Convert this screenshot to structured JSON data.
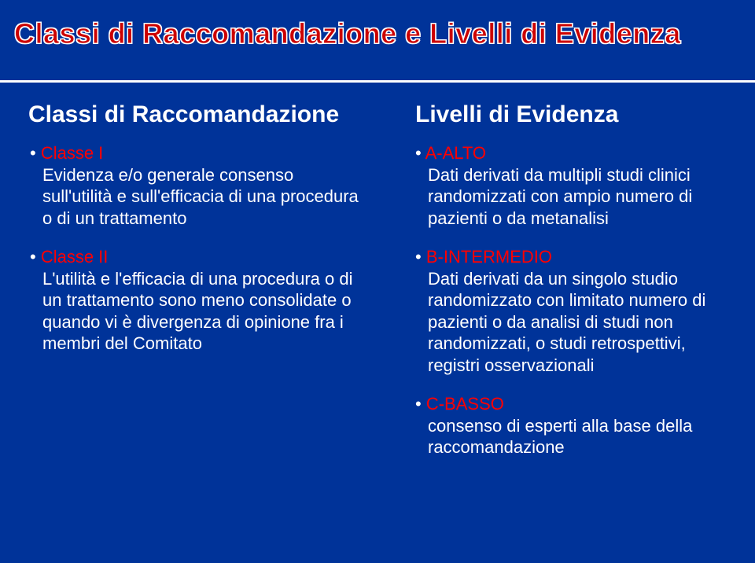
{
  "page": {
    "title": "Classi di Raccomandazione e Livelli di Evidenza"
  },
  "left": {
    "heading": "Classi di Raccomandazione",
    "items": [
      {
        "label": "Classe I",
        "desc": "Evidenza e/o generale consenso sull'utilità e sull'efficacia di una procedura o di un trattamento"
      },
      {
        "label": "Classe II",
        "desc": "L'utilità e l'efficacia di una procedura o di un trattamento sono meno consolidate o quando vi è divergenza di opinione fra i membri del Comitato"
      }
    ]
  },
  "right": {
    "heading": "Livelli di Evidenza",
    "items": [
      {
        "label": "A-ALTO",
        "desc": "Dati derivati da multipli studi clinici randomizzati con ampio numero di pazienti o da metanalisi"
      },
      {
        "label": "B-INTERMEDIO",
        "desc": "Dati derivati da un singolo studio randomizzato con limitato numero di pazienti o da analisi di studi non randomizzati, o studi retrospettivi, registri osservazionali"
      },
      {
        "label": "C-BASSO",
        "desc": "consenso di esperti alla base della raccomandazione"
      }
    ]
  },
  "style": {
    "background": "#003399",
    "title_color": "#cc0000",
    "title_outline": "#ffffff",
    "text_color": "#ffffff",
    "label_color": "#ff0000",
    "rule_color": "#ffffff",
    "title_fontsize": 36,
    "heading_fontsize": 30,
    "body_fontsize": 22
  }
}
